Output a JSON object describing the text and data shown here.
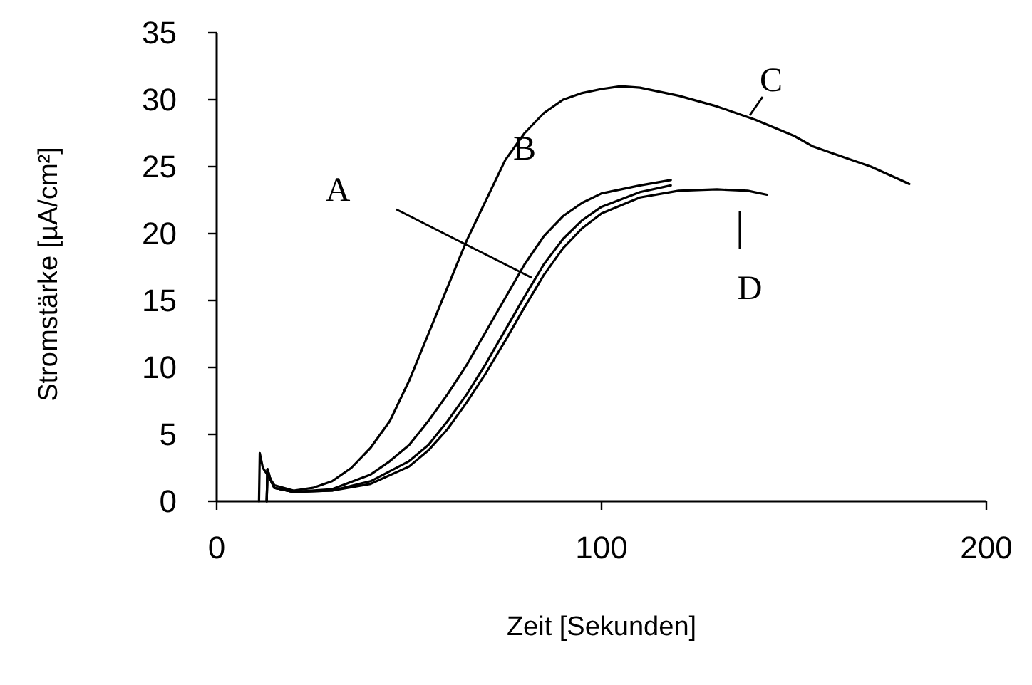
{
  "chart_data": {
    "type": "line",
    "xlabel": "Zeit [Sekunden]",
    "ylabel": "Stromstärke [µA/cm²]",
    "xlim": [
      0,
      200
    ],
    "ylim": [
      0,
      35
    ],
    "xticks": [
      0,
      100,
      200
    ],
    "yticks": [
      0,
      5,
      10,
      15,
      20,
      25,
      30,
      35
    ],
    "grid": false,
    "marker": "none",
    "line_style": "solid",
    "series": [
      {
        "color": "#000000",
        "x": [
          11,
          11.2,
          12,
          15,
          20,
          25,
          30,
          35,
          40,
          45,
          50,
          55,
          60,
          65,
          70,
          75,
          80,
          85,
          90,
          95,
          100,
          105,
          110,
          120,
          130,
          140,
          150,
          155,
          160,
          170,
          180
        ],
        "values": [
          0,
          3.6,
          2.5,
          1.2,
          0.8,
          1,
          1.5,
          2.5,
          4,
          6,
          9,
          12.5,
          16,
          19.5,
          22.5,
          25.5,
          27.5,
          29,
          30,
          30.5,
          30.8,
          31,
          30.9,
          30.3,
          29.5,
          28.5,
          27.3,
          26.5,
          26,
          25,
          23.7
        ]
      },
      {
        "color": "#000000",
        "x": [
          13,
          13.2,
          14,
          15,
          20,
          30,
          40,
          45,
          50,
          55,
          60,
          65,
          70,
          75,
          80,
          85,
          90,
          95,
          100,
          110,
          118
        ],
        "values": [
          0,
          2.4,
          1.6,
          1,
          0.7,
          0.9,
          2,
          3,
          4.2,
          6,
          8,
          10.2,
          12.7,
          15.2,
          17.7,
          19.8,
          21.3,
          22.3,
          23,
          23.6,
          24
        ]
      },
      {
        "color": "#000000",
        "x": [
          13,
          13.2,
          14,
          15,
          20,
          30,
          40,
          50,
          55,
          60,
          65,
          70,
          75,
          80,
          85,
          90,
          95,
          100,
          110,
          118
        ],
        "values": [
          0,
          2.4,
          1.6,
          1,
          0.7,
          0.8,
          1.5,
          3,
          4.2,
          6,
          8,
          10.3,
          12.8,
          15.3,
          17.7,
          19.6,
          21,
          22,
          23.1,
          23.6
        ]
      },
      {
        "color": "#000000",
        "x": [
          13,
          13.2,
          14,
          15,
          20,
          30,
          40,
          50,
          55,
          60,
          65,
          70,
          75,
          80,
          85,
          90,
          95,
          100,
          110,
          120,
          130,
          138,
          143
        ],
        "values": [
          0,
          2.4,
          1.6,
          1,
          0.7,
          0.8,
          1.3,
          2.6,
          3.8,
          5.4,
          7.4,
          9.6,
          12,
          14.5,
          16.9,
          18.9,
          20.4,
          21.5,
          22.7,
          23.2,
          23.3,
          23.2,
          22.9
        ]
      }
    ],
    "annotations": [
      "A",
      "B",
      "C",
      "D"
    ]
  }
}
